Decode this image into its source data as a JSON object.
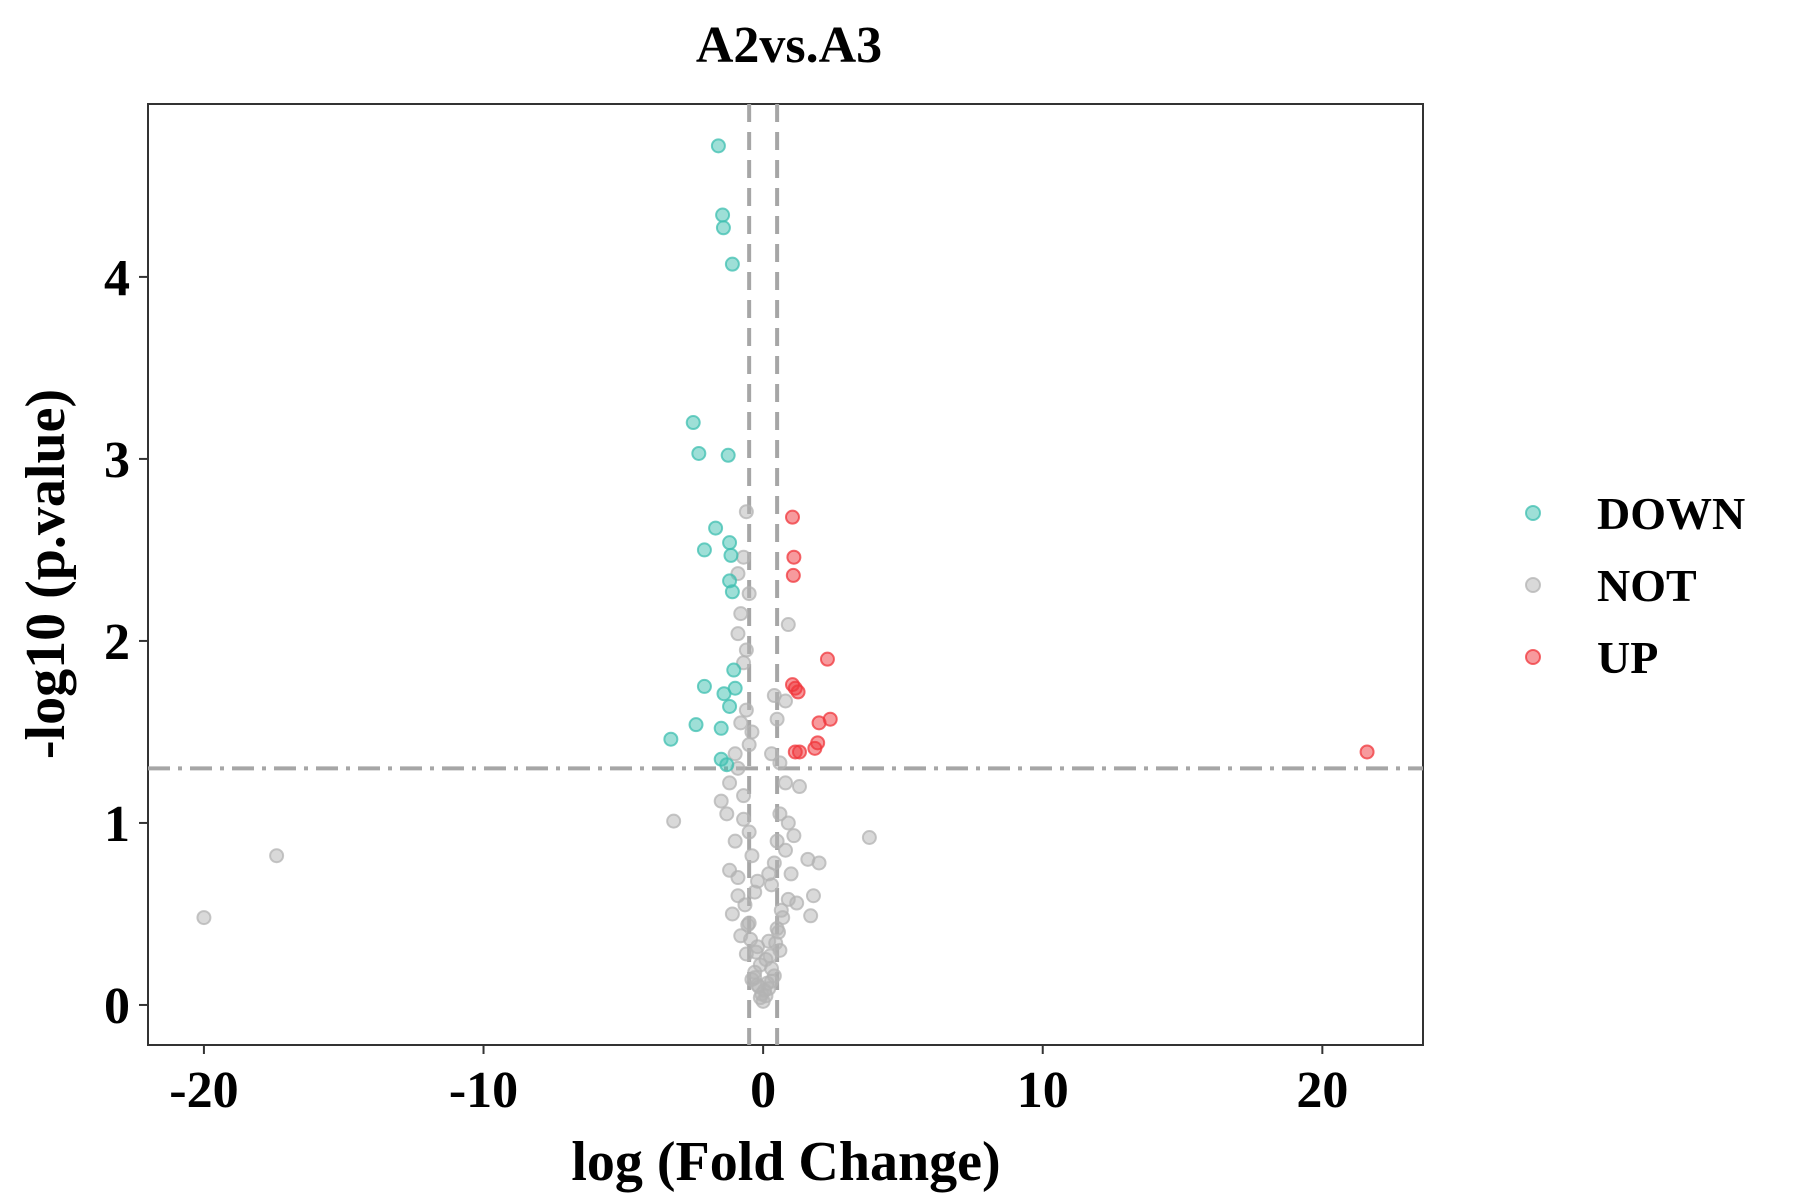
{
  "chart_data": {
    "type": "scatter",
    "title": "A2vs.A3",
    "xlabel": "log (Fold Change)",
    "ylabel": "-log10 (p.value)",
    "xlim": [
      -22,
      23.6
    ],
    "ylim": [
      -0.22,
      4.95
    ],
    "x_ticks": [
      -20,
      -10,
      0,
      10,
      20
    ],
    "x_tick_labels": [
      "-20",
      "-10",
      "0",
      "10",
      "20"
    ],
    "y_ticks": [
      0,
      1,
      2,
      3,
      4
    ],
    "y_tick_labels": [
      "0",
      "1",
      "2",
      "3",
      "4"
    ],
    "grid": false,
    "legend_position": "right",
    "thresholds": {
      "x": [
        -0.5,
        0.5
      ],
      "y": 1.3
    },
    "colors": {
      "DOWN": "#3dbfb0",
      "NOT": "#b3b3b3",
      "UP": "#f0363b",
      "threshold_line": "#a6a6a6"
    },
    "legend": [
      "DOWN",
      "NOT",
      "UP"
    ],
    "series": [
      {
        "name": "DOWN",
        "points": [
          [
            -1.6,
            4.72
          ],
          [
            -1.45,
            4.34
          ],
          [
            -1.42,
            4.27
          ],
          [
            -1.1,
            4.07
          ],
          [
            -2.5,
            3.2
          ],
          [
            -2.3,
            3.03
          ],
          [
            -1.25,
            3.02
          ],
          [
            -1.7,
            2.62
          ],
          [
            -1.2,
            2.54
          ],
          [
            -2.1,
            2.5
          ],
          [
            -1.15,
            2.47
          ],
          [
            -1.2,
            2.33
          ],
          [
            -1.1,
            2.27
          ],
          [
            -1.05,
            1.84
          ],
          [
            -2.1,
            1.75
          ],
          [
            -1.0,
            1.74
          ],
          [
            -1.4,
            1.71
          ],
          [
            -1.2,
            1.64
          ],
          [
            -2.4,
            1.54
          ],
          [
            -1.5,
            1.52
          ],
          [
            -3.3,
            1.46
          ],
          [
            -1.5,
            1.35
          ],
          [
            -1.3,
            1.32
          ]
        ]
      },
      {
        "name": "NOT",
        "points": [
          [
            -20.0,
            0.48
          ],
          [
            -17.4,
            0.82
          ],
          [
            -3.2,
            1.01
          ],
          [
            3.8,
            0.92
          ],
          [
            -0.6,
            2.71
          ],
          [
            -0.7,
            2.46
          ],
          [
            -0.9,
            2.37
          ],
          [
            -0.5,
            2.26
          ],
          [
            -0.8,
            2.15
          ],
          [
            -0.9,
            2.04
          ],
          [
            -0.6,
            1.95
          ],
          [
            0.9,
            2.09
          ],
          [
            -0.7,
            1.88
          ],
          [
            0.4,
            1.7
          ],
          [
            0.8,
            1.67
          ],
          [
            0.5,
            1.57
          ],
          [
            -0.6,
            1.62
          ],
          [
            -0.8,
            1.55
          ],
          [
            -0.5,
            1.43
          ],
          [
            -1.0,
            1.38
          ],
          [
            -0.9,
            1.3
          ],
          [
            -1.2,
            1.22
          ],
          [
            -0.7,
            1.15
          ],
          [
            -1.5,
            1.12
          ],
          [
            1.3,
            1.2
          ],
          [
            0.8,
            1.22
          ],
          [
            0.6,
            1.05
          ],
          [
            0.9,
            1.0
          ],
          [
            1.1,
            0.93
          ],
          [
            1.6,
            0.8
          ],
          [
            2.0,
            0.78
          ],
          [
            1.8,
            0.6
          ],
          [
            1.7,
            0.49
          ],
          [
            -0.4,
            0.82
          ],
          [
            0.4,
            0.78
          ],
          [
            -1.2,
            0.74
          ],
          [
            1.0,
            0.72
          ],
          [
            -0.9,
            0.7
          ],
          [
            0.3,
            0.66
          ],
          [
            -0.3,
            0.62
          ],
          [
            1.2,
            0.56
          ],
          [
            -1.1,
            0.5
          ],
          [
            0.7,
            0.48
          ],
          [
            -0.5,
            0.45
          ],
          [
            0.5,
            0.42
          ],
          [
            -0.8,
            0.38
          ],
          [
            0.2,
            0.35
          ],
          [
            -0.2,
            0.32
          ],
          [
            0.6,
            0.3
          ],
          [
            -0.6,
            0.28
          ],
          [
            0.1,
            0.25
          ],
          [
            -0.1,
            0.22
          ],
          [
            0.3,
            0.2
          ],
          [
            -0.3,
            0.18
          ],
          [
            0.4,
            0.16
          ],
          [
            -0.4,
            0.14
          ],
          [
            0.15,
            0.12
          ],
          [
            -0.15,
            0.1
          ],
          [
            0.05,
            0.08
          ],
          [
            -0.05,
            0.06
          ],
          [
            0.1,
            0.05
          ],
          [
            -0.1,
            0.04
          ],
          [
            0.0,
            0.02
          ],
          [
            0.2,
            0.09
          ],
          [
            -0.2,
            0.11
          ],
          [
            0.3,
            0.13
          ],
          [
            -0.3,
            0.15
          ],
          [
            0.25,
            0.27
          ],
          [
            -0.25,
            0.29
          ],
          [
            0.45,
            0.34
          ],
          [
            -0.45,
            0.36
          ],
          [
            0.55,
            0.4
          ],
          [
            -0.55,
            0.44
          ],
          [
            0.65,
            0.52
          ],
          [
            -0.65,
            0.55
          ],
          [
            -0.9,
            0.6
          ],
          [
            0.9,
            0.58
          ],
          [
            -0.2,
            0.68
          ],
          [
            0.2,
            0.72
          ],
          [
            -1.0,
            0.9
          ],
          [
            -0.5,
            0.95
          ],
          [
            0.5,
            0.9
          ],
          [
            -0.7,
            1.02
          ],
          [
            0.8,
            0.85
          ],
          [
            -1.3,
            1.05
          ],
          [
            0.3,
            1.38
          ],
          [
            -0.4,
            1.5
          ],
          [
            0.6,
            1.33
          ]
        ]
      },
      {
        "name": "UP",
        "points": [
          [
            1.05,
            2.68
          ],
          [
            1.1,
            2.46
          ],
          [
            1.08,
            2.36
          ],
          [
            2.3,
            1.9
          ],
          [
            1.05,
            1.76
          ],
          [
            1.15,
            1.74
          ],
          [
            1.25,
            1.72
          ],
          [
            2.4,
            1.57
          ],
          [
            2.0,
            1.55
          ],
          [
            1.95,
            1.44
          ],
          [
            1.85,
            1.41
          ],
          [
            1.3,
            1.39
          ],
          [
            1.15,
            1.39
          ],
          [
            21.6,
            1.39
          ]
        ]
      }
    ]
  }
}
